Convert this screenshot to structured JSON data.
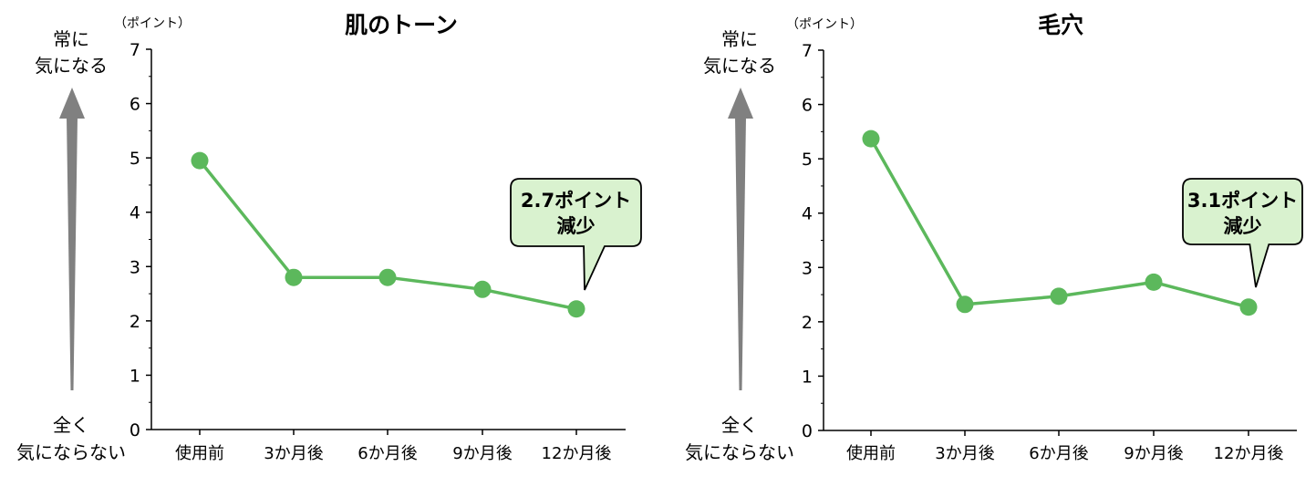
{
  "chart_data": [
    {
      "type": "line",
      "title": "肌のトーン",
      "unit_label": "（ポイント）",
      "categories": [
        "使用前",
        "3か月後",
        "6か月後",
        "9か月後",
        "12か月後"
      ],
      "values": [
        4.95,
        2.8,
        2.8,
        2.58,
        2.22
      ],
      "ylim": [
        0,
        7
      ],
      "yticks": [
        "0",
        "1",
        "2",
        "3",
        "4",
        "5",
        "6",
        "7"
      ],
      "axis_top_label": [
        "常に",
        "気になる"
      ],
      "axis_bottom_label": [
        "全く",
        "気にならない"
      ],
      "callout": [
        "2.7ポイント",
        "減少"
      ],
      "line_color": "#5cb85c",
      "callout_fill": "#d9f2cf",
      "arrow_color": "#808080"
    },
    {
      "type": "line",
      "title": "毛穴",
      "unit_label": "（ポイント）",
      "categories": [
        "使用前",
        "3か月後",
        "6か月後",
        "9か月後",
        "12か月後"
      ],
      "values": [
        5.37,
        2.32,
        2.47,
        2.73,
        2.27
      ],
      "ylim": [
        0,
        7
      ],
      "yticks": [
        "0",
        "1",
        "2",
        "3",
        "4",
        "5",
        "6",
        "7"
      ],
      "axis_top_label": [
        "常に",
        "気になる"
      ],
      "axis_bottom_label": [
        "全く",
        "気にならない"
      ],
      "callout": [
        "3.1ポイント",
        "減少"
      ],
      "line_color": "#5cb85c",
      "callout_fill": "#d9f2cf",
      "arrow_color": "#808080"
    }
  ]
}
